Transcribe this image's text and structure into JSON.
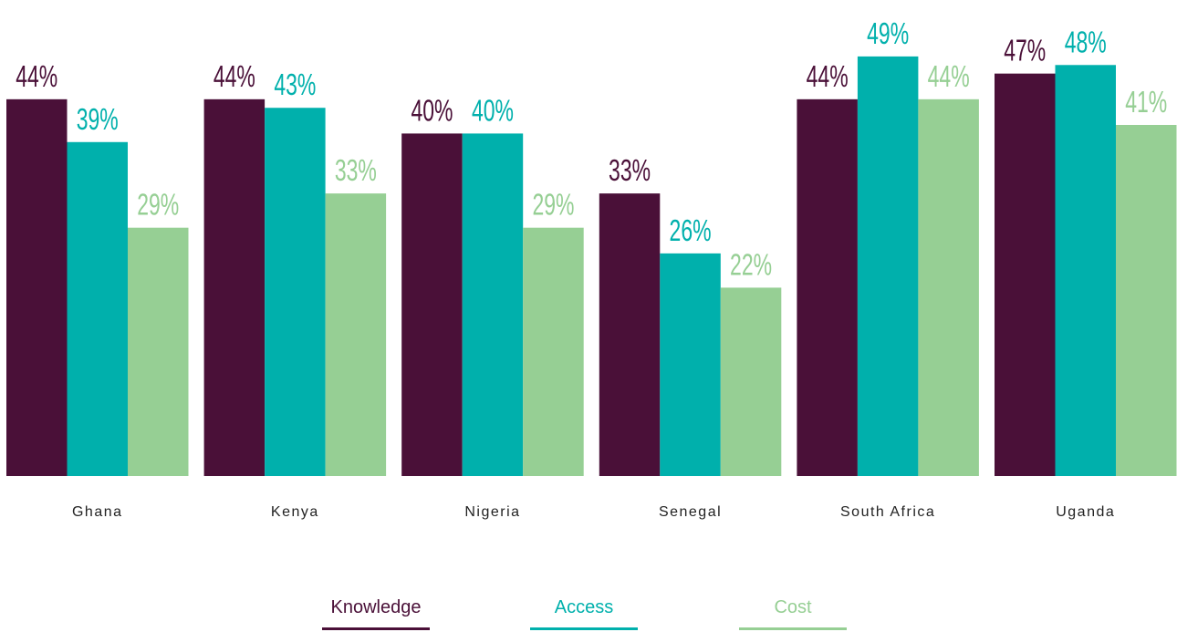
{
  "chart_data": {
    "type": "bar",
    "categories": [
      "Ghana",
      "Kenya",
      "Nigeria",
      "Senegal",
      "South Africa",
      "Uganda"
    ],
    "series": [
      {
        "name": "Knowledge",
        "color": "#4a1038",
        "values": [
          44,
          44,
          40,
          33,
          44,
          47
        ],
        "value_labels": [
          "44%",
          "44%",
          "40%",
          "33%",
          "44%",
          "47%"
        ]
      },
      {
        "name": "Access",
        "color": "#00b0ac",
        "values": [
          39,
          43,
          40,
          26,
          49,
          48
        ],
        "value_labels": [
          "39%",
          "43%",
          "40%",
          "26%",
          "49%",
          "48%"
        ]
      },
      {
        "name": "Cost",
        "color": "#96cf94",
        "values": [
          29,
          33,
          29,
          22,
          44,
          41
        ],
        "value_labels": [
          "29%",
          "33%",
          "29%",
          "22%",
          "44%",
          "41%"
        ]
      }
    ],
    "legend": "bottom"
  }
}
